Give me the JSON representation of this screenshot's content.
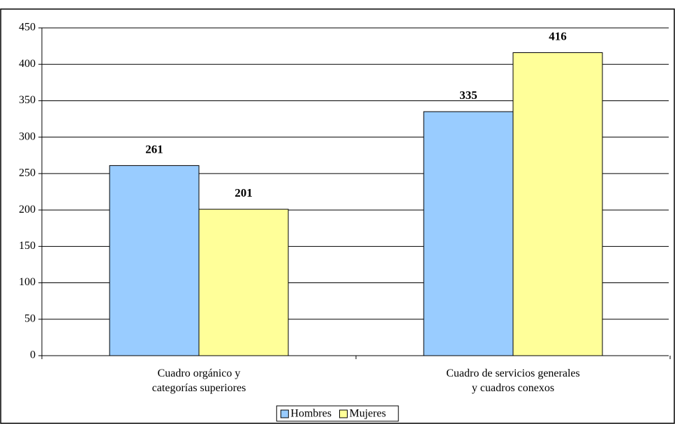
{
  "chart_data": {
    "type": "bar",
    "categories": [
      "Cuadro orgánico y\ncategorías superiores",
      "Cuadro de servicios generales\ny cuadros conexos"
    ],
    "series": [
      {
        "name": "Hombres",
        "color": "#99ccff",
        "values": [
          261,
          335
        ]
      },
      {
        "name": "Mujeres",
        "color": "#ffff99",
        "values": [
          201,
          416
        ]
      }
    ],
    "ylim": [
      0,
      450
    ],
    "yticks": [
      0,
      50,
      100,
      150,
      200,
      250,
      300,
      350,
      400,
      450
    ],
    "grid": true,
    "legend": "bottom",
    "data_labels": true
  }
}
